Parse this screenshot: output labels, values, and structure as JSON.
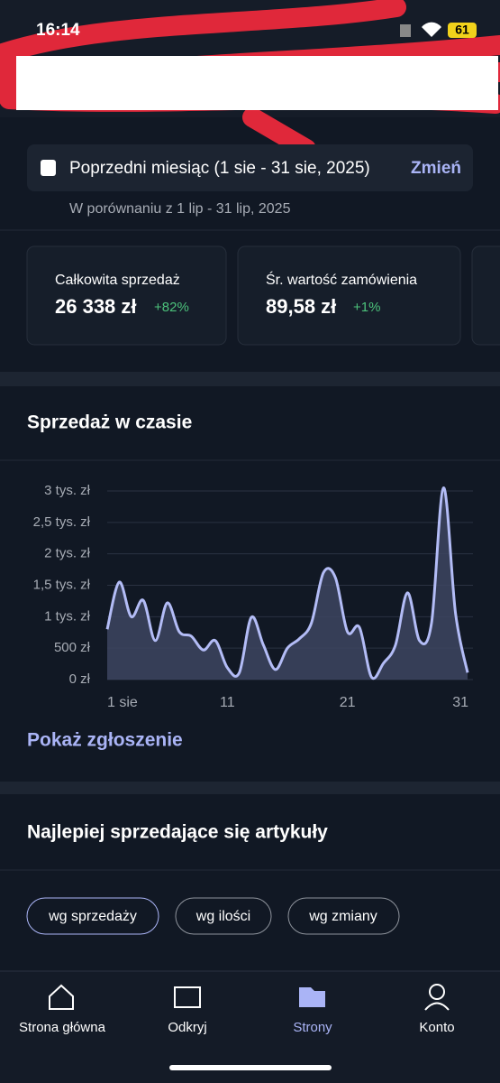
{
  "status_bar": {
    "time": "16:14",
    "battery": "61"
  },
  "date_filter": {
    "label": "Poprzedni miesiąc (1 sie - 31 sie, 2025)",
    "action": "Zmień",
    "comparison": "W porównaniu z 1 lip - 31 lip, 2025"
  },
  "kpis": [
    {
      "title": "Całkowita sprzedaż",
      "value": "26 338 zł",
      "change": "+82%"
    },
    {
      "title": "Śr. wartość zamówienia",
      "value": "89,58 zł",
      "change": "+1%"
    }
  ],
  "sales_section": {
    "title": "Sprzedaż w czasie",
    "link": "Pokaż zgłoszenie"
  },
  "chart_data": {
    "type": "area",
    "color": "#b3bcf6",
    "fill": "#3d4560",
    "grid": true,
    "x": [
      1,
      2,
      3,
      4,
      5,
      6,
      7,
      8,
      9,
      10,
      11,
      12,
      13,
      14,
      15,
      16,
      17,
      18,
      19,
      20,
      21,
      22,
      23,
      24,
      25,
      26,
      27,
      28,
      29,
      30,
      31
    ],
    "values": [
      800,
      1550,
      1000,
      1260,
      620,
      1220,
      760,
      690,
      470,
      620,
      190,
      110,
      990,
      550,
      160,
      500,
      650,
      900,
      1700,
      1620,
      760,
      830,
      40,
      260,
      550,
      1380,
      620,
      900,
      3050,
      1050,
      110
    ],
    "xlim": [
      1,
      31
    ],
    "xticks": [
      {
        "value": 1,
        "label": "1 sie"
      },
      11,
      21,
      31
    ],
    "ylim": [
      0,
      3000
    ],
    "yticks": [
      {
        "value": 0,
        "label": "0 zł"
      },
      {
        "value": 500,
        "label": "500 zł"
      },
      {
        "value": 1000,
        "label": "1 tys. zł"
      },
      {
        "value": 1500,
        "label": "1,5 tys. zł"
      },
      {
        "value": 2000,
        "label": "2 tys. zł"
      },
      {
        "value": 2500,
        "label": "2,5 tys. zł"
      },
      {
        "value": 3000,
        "label": "3 tys. zł"
      }
    ]
  },
  "top_products": {
    "title": "Najlepiej sprzedające się artykuły",
    "filters": [
      "wg sprzedaży",
      "wg ilości",
      "wg zmiany"
    ]
  },
  "nav": [
    "Strona główna",
    "Odkryj",
    "Strony",
    "Konto"
  ]
}
